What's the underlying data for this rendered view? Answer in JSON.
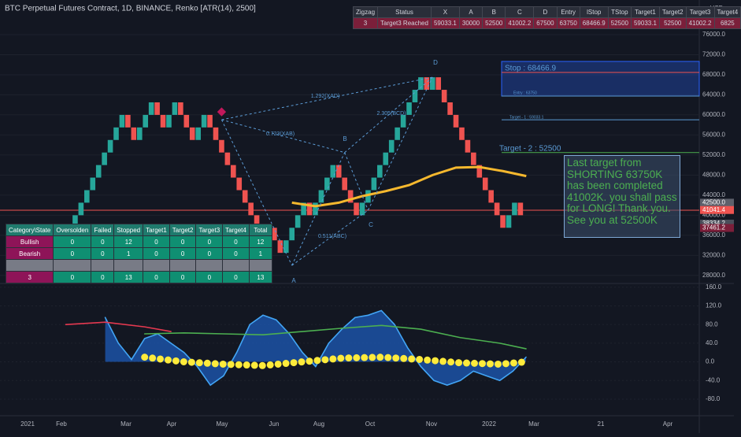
{
  "chart_data": [
    {
      "type": "renko",
      "title": "BTC Perpetual Futures Contract, 1D, BINANCE, Renko [ATR(14), 2500]",
      "unit": "USD",
      "brick_size": 2500,
      "up_color": "#26a69a",
      "down_color": "#ef5350",
      "values": [
        37500,
        40000,
        42500,
        45000,
        47500,
        50000,
        52500,
        55000,
        57500,
        60000,
        57500,
        55000,
        57500,
        60000,
        62500,
        60000,
        57500,
        60000,
        62500,
        60000,
        57500,
        55000,
        57500,
        60000,
        57500,
        55000,
        52500,
        50000,
        47500,
        45000,
        42500,
        40000,
        37500,
        35000,
        37500,
        35000,
        32500,
        35000,
        37500,
        40000,
        42500,
        40000,
        42500,
        45000,
        47500,
        50000,
        47500,
        45000,
        42500,
        40000,
        42500,
        45000,
        47500,
        50000,
        52500,
        55000,
        57500,
        60000,
        62500,
        65000,
        67500,
        65000,
        67500,
        65000,
        62500,
        60000,
        57500,
        55000,
        52500,
        50000,
        47500,
        45000,
        42500,
        40000,
        37500,
        40000,
        42500,
        40000
      ],
      "ylim": [
        26400,
        82900
      ],
      "yticks": [
        {
          "value": 76000,
          "label": "76000.0"
        },
        {
          "value": 72000,
          "label": "72000.0"
        },
        {
          "value": 68000,
          "label": "68000.0"
        },
        {
          "value": 64000,
          "label": "64000.0"
        },
        {
          "value": 60000,
          "label": "60000.0"
        },
        {
          "value": 56000,
          "label": "56000.0"
        },
        {
          "value": 52000,
          "label": "52000.0"
        },
        {
          "value": 48000,
          "label": "48000.0"
        },
        {
          "value": 44000,
          "label": "44000.0"
        },
        {
          "value": 40000,
          "label": "40000.0"
        },
        {
          "value": 36000,
          "label": "36000.0"
        },
        {
          "value": 32000,
          "label": "32000.0"
        },
        {
          "value": 28000,
          "label": "28000.0"
        }
      ],
      "grid": true,
      "price_labels": [
        {
          "value": 42500,
          "label": "42500.0",
          "color": "#5d606b"
        },
        {
          "value": 41041.4,
          "label": "41041.4",
          "color": "#ef5350"
        },
        {
          "value": 38334.2,
          "label": "38334.2",
          "color": "#4a4e5a"
        },
        {
          "value": 37461.2,
          "label": "37461.2",
          "color": "#7b1f3a"
        }
      ],
      "ma": {
        "color": "#f5b82e",
        "x": [
          38,
          42,
          46,
          50,
          54,
          58,
          62,
          66,
          70,
          74,
          78
        ],
        "values": [
          42500,
          41800,
          42500,
          43800,
          44800,
          46000,
          48000,
          49500,
          49600,
          48800,
          47800
        ]
      },
      "zigzag_labels": [
        "A",
        "B",
        "C",
        "D"
      ],
      "ratios": [
        "1.292(XAD)",
        "0.723(XAB)",
        "2.305(BCD)",
        "0.511(ABC)"
      ],
      "levels": [
        "Stop : 68466.9",
        "Entry : 63750",
        "Target - 1 : 59033.1",
        "Target - 2 : 52500"
      ],
      "note": "Last target from SHORTING 63750K has been completed 41002K. you shall pass for LONG! Thank you. See you at 52500K"
    },
    {
      "type": "oscillator",
      "xlim": [
        0,
        40
      ],
      "ylim": [
        -102,
        168
      ],
      "yticks": [
        {
          "value": 160,
          "label": "160.0"
        },
        {
          "value": 120,
          "label": "120.0"
        },
        {
          "value": 80,
          "label": "80.0"
        },
        {
          "value": 40,
          "label": "40.0"
        },
        {
          "value": 0,
          "label": "0.0"
        },
        {
          "value": -40,
          "label": "-40.0"
        },
        {
          "value": -80,
          "label": "-80.0"
        }
      ],
      "grid": true,
      "series": [
        {
          "color": "#42a5f5",
          "x": [
            8,
            9,
            10,
            11,
            12,
            13,
            14,
            15,
            16,
            17,
            18,
            19,
            20,
            21,
            22,
            23,
            24,
            25,
            26,
            27,
            28,
            29,
            30,
            31,
            32,
            33,
            34,
            35,
            36,
            37,
            38,
            39,
            40
          ],
          "values": [
            95,
            40,
            5,
            50,
            60,
            40,
            20,
            -10,
            -50,
            -30,
            20,
            80,
            100,
            90,
            60,
            20,
            -10,
            40,
            70,
            95,
            100,
            110,
            80,
            30,
            -10,
            -40,
            -50,
            -40,
            -20,
            -30,
            -40,
            -20,
            10
          ]
        },
        {
          "color": "#4caf50",
          "x": [
            11,
            14,
            17,
            20,
            23,
            26,
            29,
            32,
            35,
            38,
            40
          ],
          "values": [
            60,
            62,
            60,
            58,
            65,
            72,
            78,
            70,
            52,
            40,
            28
          ]
        },
        {
          "color": "#e53950",
          "x": [
            5,
            8,
            11,
            13
          ],
          "values": [
            80,
            85,
            75,
            65
          ]
        },
        {
          "color": "#ffeb3b",
          "x": [
            11,
            14,
            17,
            20,
            23,
            26,
            29,
            32,
            35,
            38,
            40
          ],
          "values": [
            10,
            0,
            -5,
            -8,
            0,
            8,
            10,
            5,
            -2,
            -5,
            0
          ]
        }
      ]
    }
  ],
  "time_labels": [
    "2021",
    "Feb",
    "Mar",
    "Apr",
    "May",
    "Jun",
    "Aug",
    "Oct",
    "Nov",
    "2022",
    "Mar",
    "21",
    "Apr"
  ],
  "top_table": {
    "header": [
      "Zigzag",
      "Status",
      "X",
      "A",
      "B",
      "C",
      "D",
      "Entry",
      "lStop",
      "TStop",
      "Target1",
      "Target2",
      "Target3",
      "Target4"
    ],
    "rows": [
      [
        3,
        "Target3 Reached",
        59033.1,
        30000,
        52500,
        41002.2,
        67500,
        63750,
        68466.9,
        52500,
        59033.1,
        52500,
        41002.2,
        6825
      ]
    ]
  },
  "stats_table": {
    "header": [
      "Category\\State",
      "Oversolden",
      "Failed",
      "Stopped",
      "Target1",
      "Target2",
      "Target3",
      "Target4",
      "Total"
    ],
    "rows": [
      [
        "Bullish",
        0,
        0,
        12,
        0,
        0,
        0,
        0,
        12
      ],
      [
        "Bearish",
        0,
        0,
        1,
        0,
        0,
        0,
        0,
        1
      ],
      [
        3,
        0,
        0,
        13,
        0,
        0,
        0,
        0,
        13
      ]
    ]
  }
}
